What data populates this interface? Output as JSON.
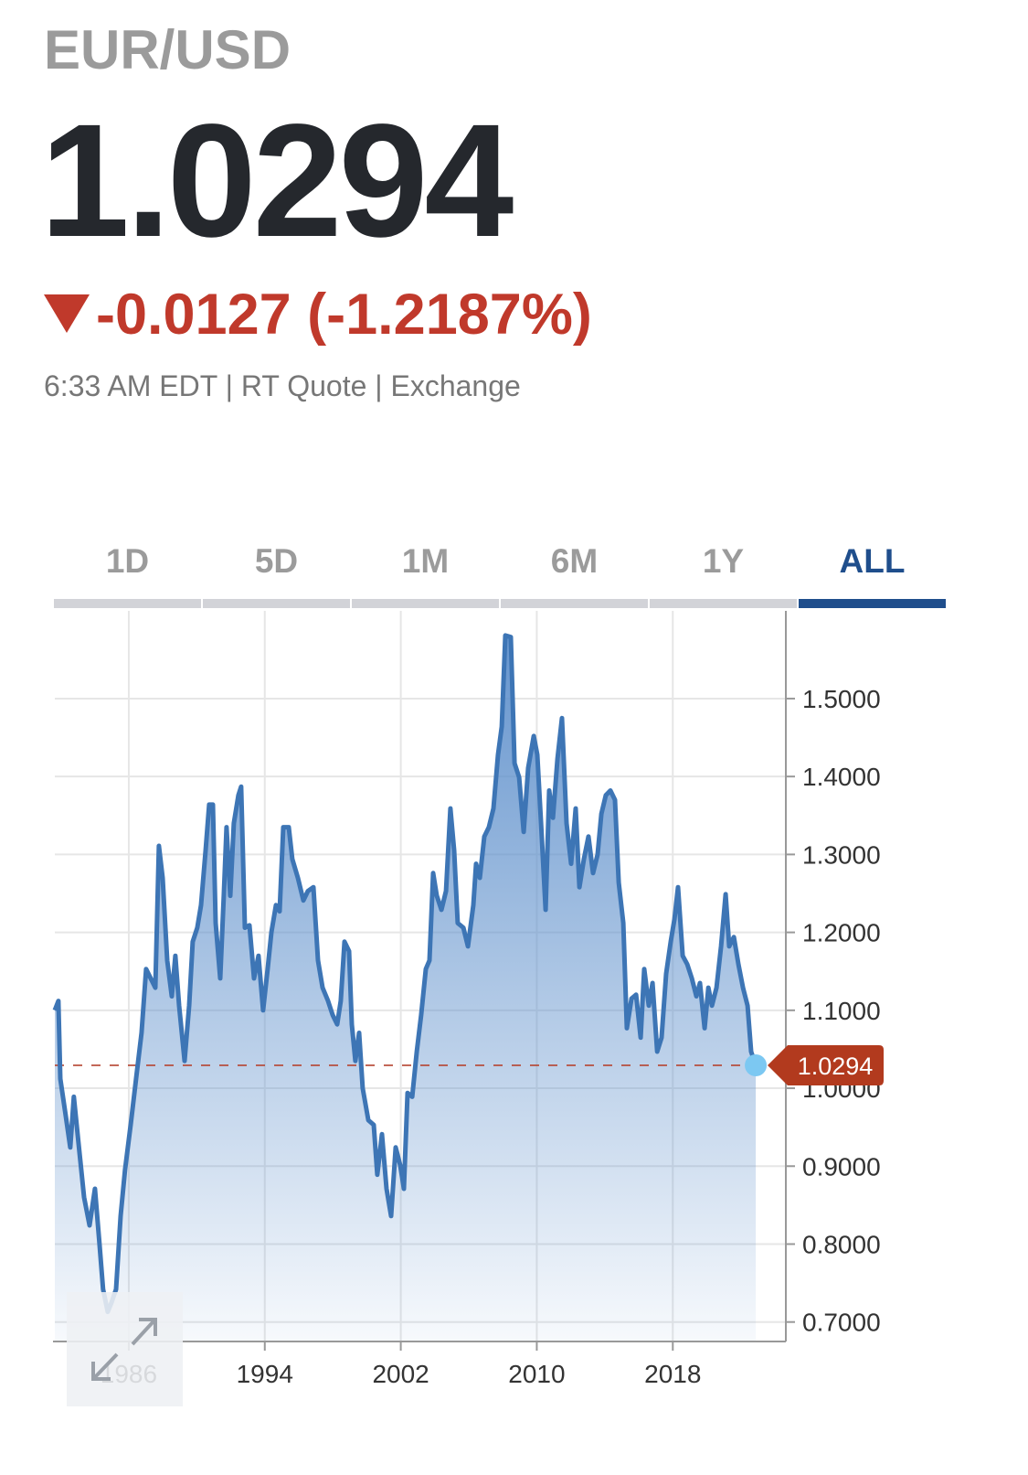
{
  "header": {
    "symbol": "EUR/USD",
    "price": "1.0294",
    "change": "-0.0127 (-1.2187%)",
    "meta": "6:33 AM EDT | RT Quote | Exchange"
  },
  "tabs": {
    "items": [
      "1D",
      "5D",
      "1M",
      "6M",
      "1Y",
      "ALL"
    ],
    "active": "ALL"
  },
  "chart_data": {
    "type": "area",
    "series": [
      {
        "color": "#3d75b5",
        "x": [
          1981.65,
          1981.86,
          1981.97,
          1982.29,
          1982.56,
          1982.77,
          1983.04,
          1983.37,
          1983.69,
          1984.01,
          1984.28,
          1984.49,
          1984.76,
          1984.98,
          1985.25,
          1985.52,
          1985.78,
          1986.11,
          1986.43,
          1986.75,
          1987.02,
          1987.29,
          1987.56,
          1987.77,
          1987.99,
          1988.26,
          1988.53,
          1988.74,
          1988.96,
          1989.28,
          1989.55,
          1989.76,
          1990.03,
          1990.25,
          1990.52,
          1990.73,
          1990.95,
          1991.11,
          1991.38,
          1991.59,
          1991.75,
          1991.97,
          1992.18,
          1992.45,
          1992.61,
          1992.83,
          1993.1,
          1993.37,
          1993.63,
          1993.9,
          1994.17,
          1994.39,
          1994.66,
          1994.87,
          1995.09,
          1995.41,
          1995.62,
          1995.95,
          1996.27,
          1996.54,
          1996.86,
          1997.13,
          1997.4,
          1997.72,
          1997.99,
          1998.26,
          1998.47,
          1998.69,
          1998.96,
          1999.12,
          1999.33,
          1999.55,
          1999.76,
          2000.09,
          2000.41,
          2000.62,
          2000.89,
          2001.16,
          2001.43,
          2001.7,
          2001.97,
          2002.18,
          2002.4,
          2002.67,
          2002.94,
          2003.2,
          2003.47,
          2003.69,
          2003.9,
          2004.12,
          2004.39,
          2004.66,
          2004.92,
          2005.14,
          2005.35,
          2005.68,
          2005.95,
          2006.27,
          2006.43,
          2006.65,
          2006.91,
          2007.18,
          2007.45,
          2007.72,
          2007.94,
          2008.15,
          2008.47,
          2008.69,
          2008.96,
          2009.23,
          2009.49,
          2009.82,
          2010.03,
          2010.25,
          2010.52,
          2010.73,
          2010.95,
          2011.22,
          2011.48,
          2011.75,
          2012.02,
          2012.29,
          2012.51,
          2012.77,
          2013.04,
          2013.31,
          2013.58,
          2013.8,
          2014.06,
          2014.33,
          2014.6,
          2014.82,
          2015.09,
          2015.3,
          2015.57,
          2015.84,
          2016.11,
          2016.32,
          2016.59,
          2016.81,
          2017.08,
          2017.34,
          2017.61,
          2017.88,
          2018.1,
          2018.31,
          2018.58,
          2018.85,
          2019.12,
          2019.39,
          2019.6,
          2019.87,
          2020.09,
          2020.3,
          2020.57,
          2020.84,
          2021.11,
          2021.32,
          2021.59,
          2021.86,
          2022.13,
          2022.4,
          2022.61,
          2022.88
        ],
        "values": [
          1.1,
          1.112,
          1.012,
          0.965,
          0.924,
          0.989,
          0.93,
          0.86,
          0.824,
          0.871,
          0.8,
          0.742,
          0.713,
          0.725,
          0.742,
          0.836,
          0.895,
          0.953,
          1.012,
          1.071,
          1.153,
          1.141,
          1.129,
          1.311,
          1.27,
          1.164,
          1.118,
          1.17,
          1.106,
          1.035,
          1.106,
          1.188,
          1.206,
          1.235,
          1.305,
          1.364,
          1.364,
          1.212,
          1.141,
          1.247,
          1.335,
          1.247,
          1.34,
          1.376,
          1.387,
          1.206,
          1.209,
          1.141,
          1.17,
          1.1,
          1.153,
          1.2,
          1.235,
          1.227,
          1.335,
          1.335,
          1.294,
          1.27,
          1.241,
          1.253,
          1.258,
          1.164,
          1.129,
          1.112,
          1.094,
          1.082,
          1.112,
          1.188,
          1.176,
          1.082,
          1.035,
          1.071,
          1.0,
          0.959,
          0.953,
          0.889,
          0.941,
          0.871,
          0.836,
          0.924,
          0.901,
          0.871,
          0.994,
          0.989,
          1.047,
          1.094,
          1.153,
          1.164,
          1.276,
          1.247,
          1.229,
          1.253,
          1.359,
          1.305,
          1.212,
          1.206,
          1.182,
          1.235,
          1.288,
          1.27,
          1.323,
          1.335,
          1.359,
          1.428,
          1.464,
          1.581,
          1.579,
          1.417,
          1.399,
          1.329,
          1.411,
          1.452,
          1.428,
          1.34,
          1.229,
          1.382,
          1.347,
          1.423,
          1.475,
          1.34,
          1.288,
          1.359,
          1.258,
          1.294,
          1.323,
          1.276,
          1.3,
          1.352,
          1.376,
          1.382,
          1.37,
          1.264,
          1.212,
          1.077,
          1.115,
          1.12,
          1.065,
          1.153,
          1.106,
          1.135,
          1.047,
          1.065,
          1.147,
          1.188,
          1.217,
          1.258,
          1.17,
          1.159,
          1.141,
          1.118,
          1.135,
          1.077,
          1.129,
          1.106,
          1.129,
          1.182,
          1.249,
          1.182,
          1.194,
          1.159,
          1.129,
          1.106,
          1.047,
          1.0294
        ]
      }
    ],
    "xlim": [
      1981.65,
      2024.65
    ],
    "xticks": [
      1986,
      1994,
      2002,
      2010,
      2018
    ],
    "ylim": [
      0.675,
      1.6126
    ],
    "yticks": [
      {
        "value": 0.7,
        "label": "0.7000"
      },
      {
        "value": 0.8,
        "label": "0.8000"
      },
      {
        "value": 0.9,
        "label": "0.9000"
      },
      {
        "value": 1.0,
        "label": "1.0000"
      },
      {
        "value": 1.1,
        "label": "1.1000"
      },
      {
        "value": 1.2,
        "label": "1.2000"
      },
      {
        "value": 1.3,
        "label": "1.3000"
      },
      {
        "value": 1.4,
        "label": "1.4000"
      },
      {
        "value": 1.5,
        "label": "1.5000"
      }
    ],
    "grid": true,
    "last_marker_color": "#7cc8f2",
    "badge_color": "#b23a1e"
  }
}
